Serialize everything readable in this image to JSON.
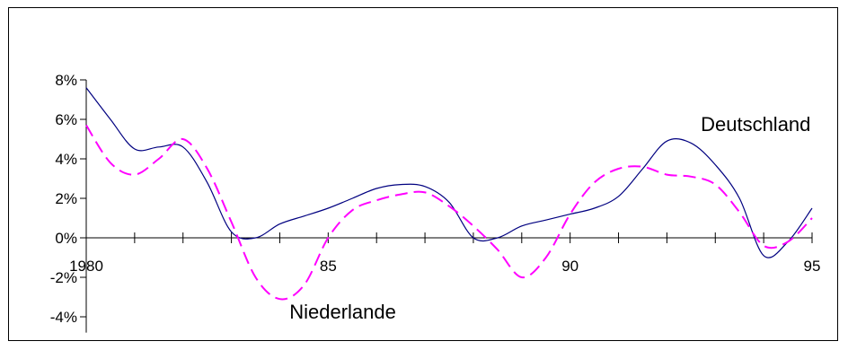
{
  "chart_data": {
    "type": "line",
    "title": "",
    "xlabel": "",
    "ylabel": "",
    "xlim": [
      1980,
      1995
    ],
    "ylim": [
      -5,
      8
    ],
    "y_ticks": [
      {
        "value": 8,
        "label": "8%"
      },
      {
        "value": 6,
        "label": "6%"
      },
      {
        "value": 4,
        "label": "4%"
      },
      {
        "value": 2,
        "label": "2%"
      },
      {
        "value": 0,
        "label": "0%"
      },
      {
        "value": -2,
        "label": "-2%"
      },
      {
        "value": -4,
        "label": "-4%"
      }
    ],
    "x_tick_labels": [
      {
        "value": 1980,
        "label": "1980"
      },
      {
        "value": 1985,
        "label": "85"
      },
      {
        "value": 1990,
        "label": "90"
      },
      {
        "value": 1995,
        "label": "95"
      }
    ],
    "x_minor_ticks": [
      1980,
      1981,
      1982,
      1983,
      1984,
      1985,
      1986,
      1987,
      1988,
      1989,
      1990,
      1991,
      1992,
      1993,
      1994,
      1995
    ],
    "grid": false,
    "legend": "none (series labelled directly on the plot)",
    "series": [
      {
        "name": "Deutschland",
        "color": "#000080",
        "style": "solid",
        "label_at": [
          1992.7,
          5.4
        ],
        "x": [
          1980,
          1980.5,
          1981,
          1981.5,
          1982,
          1982.5,
          1983,
          1983.5,
          1984,
          1984.5,
          1985,
          1985.5,
          1986,
          1986.5,
          1987,
          1987.5,
          1988,
          1988.5,
          1989,
          1989.5,
          1990,
          1990.5,
          1991,
          1991.5,
          1992,
          1992.5,
          1993,
          1993.5,
          1994,
          1994.5,
          1995
        ],
        "y": [
          7.6,
          6.0,
          4.5,
          4.6,
          4.6,
          2.8,
          0.3,
          0.0,
          0.7,
          1.1,
          1.5,
          2.0,
          2.5,
          2.7,
          2.6,
          1.8,
          0.0,
          0.0,
          0.6,
          0.9,
          1.2,
          1.5,
          2.1,
          3.5,
          4.9,
          4.8,
          3.7,
          2.0,
          -0.9,
          -0.2,
          1.5
        ]
      },
      {
        "name": "Niederlande",
        "color": "#ff00ff",
        "style": "dashed",
        "label_at": [
          1984.2,
          -4.1
        ],
        "x": [
          1980,
          1980.5,
          1981,
          1981.5,
          1982,
          1982.5,
          1983,
          1983.5,
          1984,
          1984.5,
          1985,
          1985.5,
          1986,
          1986.5,
          1987,
          1987.5,
          1988,
          1988.5,
          1989,
          1989.5,
          1990,
          1990.5,
          1991,
          1991.5,
          1992,
          1992.5,
          1993,
          1993.5,
          1994,
          1994.5,
          1995
        ],
        "y": [
          5.7,
          3.8,
          3.2,
          4.0,
          5.0,
          3.5,
          0.8,
          -2.0,
          -3.1,
          -2.4,
          0.0,
          1.4,
          1.9,
          2.2,
          2.3,
          1.6,
          0.6,
          -0.6,
          -2.0,
          -1.0,
          1.2,
          2.8,
          3.5,
          3.6,
          3.2,
          3.1,
          2.7,
          1.3,
          -0.4,
          -0.2,
          1.0
        ]
      }
    ]
  }
}
